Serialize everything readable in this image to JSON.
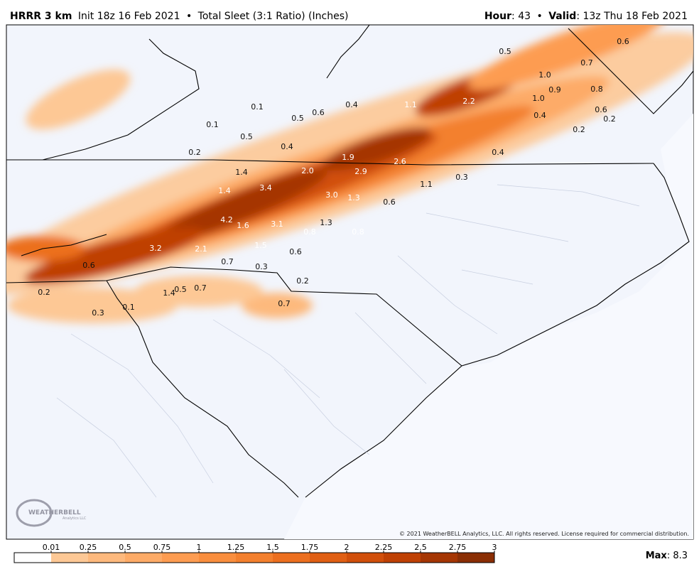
{
  "header": {
    "model": "HRRR 3 km",
    "init": "Init 18z 16 Feb 2021",
    "separator": "•",
    "product": "Total Sleet (3:1 Ratio) (Inches)",
    "hour_label": "Hour",
    "hour_value": ": 43",
    "valid_label": "Valid",
    "valid_value": ": 13z Thu 18 Feb 2021"
  },
  "map_labels": [
    "0.5",
    "0.6",
    "0.7",
    "1.0",
    "0.9",
    "0.8",
    "1.0",
    "2.2",
    "0.6",
    "0.2",
    "0.4",
    "0.2",
    "1.1",
    "0.4",
    "0.1",
    "0.5",
    "0.6",
    "0.1",
    "0.5",
    "0.4",
    "0.2",
    "1.9",
    "2.6",
    "0.4",
    "0.3",
    "1.4",
    "2.0",
    "2.9",
    "1.1",
    "1.4",
    "3.4",
    "3.0",
    "1.3",
    "0.6",
    "4.2",
    "1.6",
    "3.1",
    "1.3",
    "0.8",
    "0.8",
    "1.5",
    "0.6",
    "3.2",
    "2.1",
    "0.6",
    "0.7",
    "0.3",
    "0.2",
    "0.2",
    "1.4",
    "0.5",
    "0.7",
    "0.7",
    "0.3",
    "0.1"
  ],
  "logo": {
    "name": "WEATHERBELL",
    "sub": "Analytics LLC"
  },
  "copyright": "© 2021 WeatherBELL Analytics, LLC. All rights reserved. License required for commercial distribution.",
  "colorbar": {
    "ticks": [
      0.01,
      0.25,
      0.5,
      0.75,
      1,
      1.25,
      1.5,
      1.75,
      2,
      2.25,
      2.5,
      2.75,
      3
    ],
    "colors": [
      "#ffffff",
      "#fdc895",
      "#fdb97d",
      "#fdab67",
      "#fd9c51",
      "#f98e3e",
      "#f3802e",
      "#ec6f1f",
      "#e05f14",
      "#d14f0b",
      "#bf4104",
      "#a53603",
      "#8a2e04"
    ]
  },
  "max": {
    "label": "Max",
    "value": ": 8.3"
  }
}
